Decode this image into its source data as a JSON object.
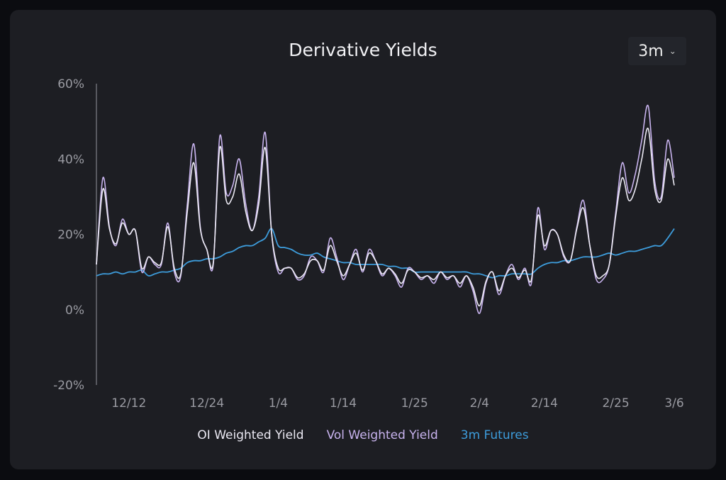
{
  "chart_data": {
    "type": "line",
    "title": "Derivative Yields",
    "range_selector": "3m",
    "xlabel": "",
    "ylabel": "",
    "ylim": [
      -20,
      60
    ],
    "yticks": [
      "60%",
      "40%",
      "20%",
      "0%",
      "-20%"
    ],
    "ytick_values": [
      60,
      40,
      20,
      0,
      -20
    ],
    "xticks": [
      "12/12",
      "12/24",
      "1/4",
      "1/14",
      "1/25",
      "2/4",
      "2/14",
      "2/25",
      "3/6"
    ],
    "xtick_index": [
      5,
      17,
      28,
      38,
      49,
      59,
      69,
      80,
      89
    ],
    "x_start": "12/7",
    "x_end": "3/6",
    "grid": false,
    "legend_position": "bottom",
    "colors": {
      "oi": "#ebe9f3",
      "vol": "#c8b3ee",
      "fut": "#3d9cdb"
    },
    "series": [
      {
        "name": "OI Weighted Yield",
        "key": "oi",
        "values": [
          12,
          32,
          21.5,
          17.5,
          23,
          20,
          21,
          11,
          14,
          12.5,
          12.5,
          22,
          11,
          9.5,
          26,
          39,
          21.5,
          16,
          12.5,
          43,
          29,
          30,
          36,
          26,
          21,
          28,
          43,
          20,
          11,
          11,
          11,
          8.5,
          9.5,
          13,
          13,
          10.5,
          17,
          13,
          9,
          12,
          15,
          10.5,
          15,
          13,
          9.5,
          11,
          9.5,
          7,
          10.5,
          10,
          8.5,
          9,
          8,
          10,
          8.5,
          9,
          7,
          9,
          6,
          1,
          7.5,
          10,
          5,
          9,
          11,
          8.5,
          10.5,
          8,
          25,
          17,
          21,
          20,
          14.5,
          13,
          21.5,
          27,
          17,
          9,
          9,
          12,
          25,
          35,
          29,
          32,
          40,
          48,
          32,
          29,
          40,
          33
        ]
      },
      {
        "name": "Vol Weighted Yield",
        "key": "vol",
        "values": [
          12,
          35,
          22,
          17,
          24,
          20,
          21,
          10,
          14,
          12,
          12,
          23,
          10,
          9,
          28,
          44,
          22,
          16,
          12,
          46,
          31,
          33,
          40,
          28,
          21,
          30,
          47,
          20,
          10,
          11,
          11,
          8,
          9,
          14,
          13,
          10,
          19,
          14,
          8,
          12,
          16,
          10,
          16,
          13,
          9,
          11,
          9,
          6,
          11,
          10,
          8,
          9,
          7,
          10,
          8,
          9,
          6,
          9,
          5,
          -1,
          7,
          10,
          4,
          9,
          12,
          8,
          11,
          7,
          27,
          16,
          21,
          20,
          14,
          13,
          22,
          29,
          17,
          8,
          8,
          12,
          26,
          39,
          31,
          36,
          45,
          54,
          34,
          30,
          45,
          35
        ]
      },
      {
        "name": "3m Futures",
        "key": "fut",
        "values": [
          9,
          9.5,
          9.5,
          10,
          9.5,
          10,
          10,
          10.5,
          9,
          9.5,
          10,
          10,
          10.5,
          11,
          12.5,
          13,
          13,
          13.5,
          13.5,
          14,
          15,
          15.5,
          16.5,
          17,
          17,
          18,
          19,
          21.5,
          17,
          16.5,
          16,
          15,
          14.5,
          14.5,
          15,
          14,
          13.5,
          13,
          12.5,
          12.5,
          12,
          12,
          12,
          12,
          12,
          11.5,
          11.5,
          11,
          11,
          10,
          10,
          10,
          10,
          10,
          10,
          10,
          10,
          10,
          9.5,
          9.5,
          9,
          8.5,
          9,
          9,
          9.5,
          9.5,
          9.5,
          9.5,
          11,
          12,
          12.5,
          12.5,
          13,
          13,
          13.5,
          14,
          14,
          14,
          14.5,
          15,
          14.5,
          15,
          15.5,
          15.5,
          16,
          16.5,
          17,
          17,
          19,
          21.5
        ]
      }
    ]
  }
}
